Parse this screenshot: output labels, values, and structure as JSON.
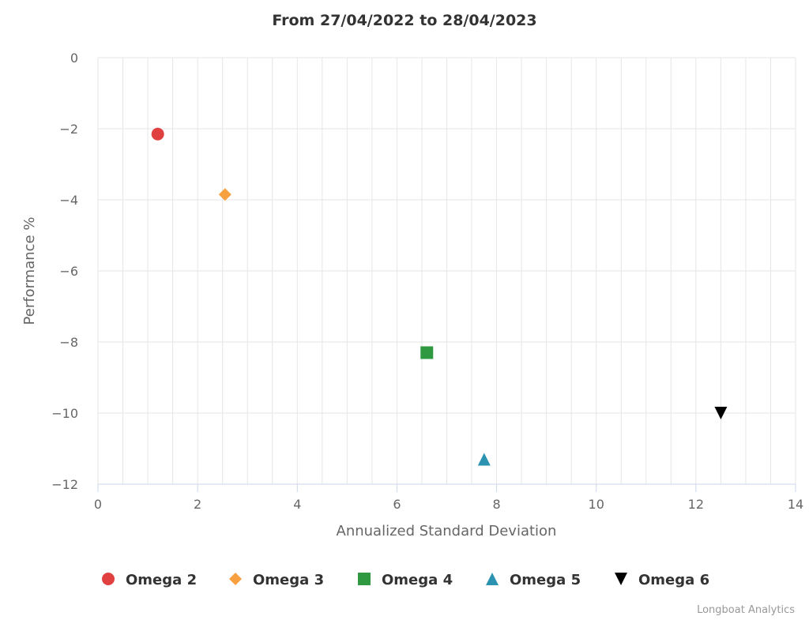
{
  "chart_data": {
    "type": "scatter",
    "title": "From 27/04/2022 to 28/04/2023",
    "xlabel": "Annualized Standard Deviation",
    "ylabel": "Performance %",
    "xlim": [
      0,
      14
    ],
    "ylim": [
      -12,
      0
    ],
    "x_ticks": [
      "0",
      "2",
      "4",
      "6",
      "8",
      "10",
      "12",
      "14"
    ],
    "y_ticks": [
      "0",
      "−2",
      "−4",
      "−6",
      "−8",
      "−10",
      "−12"
    ],
    "grid": true,
    "legend_position": "bottom",
    "series": [
      {
        "name": "Omega 2",
        "marker": "circle",
        "color": "#e04040",
        "x": 1.2,
        "y": -2.15
      },
      {
        "name": "Omega 3",
        "marker": "diamond",
        "color": "#f7a040",
        "x": 2.55,
        "y": -3.85
      },
      {
        "name": "Omega 4",
        "marker": "square",
        "color": "#2e9940",
        "x": 6.6,
        "y": -8.3
      },
      {
        "name": "Omega 5",
        "marker": "triangle",
        "color": "#2b93b0",
        "x": 7.75,
        "y": -11.3
      },
      {
        "name": "Omega 6",
        "marker": "triangle-down",
        "color": "#000000",
        "x": 12.5,
        "y": -10.0
      }
    ]
  },
  "credit": "Longboat Analytics"
}
